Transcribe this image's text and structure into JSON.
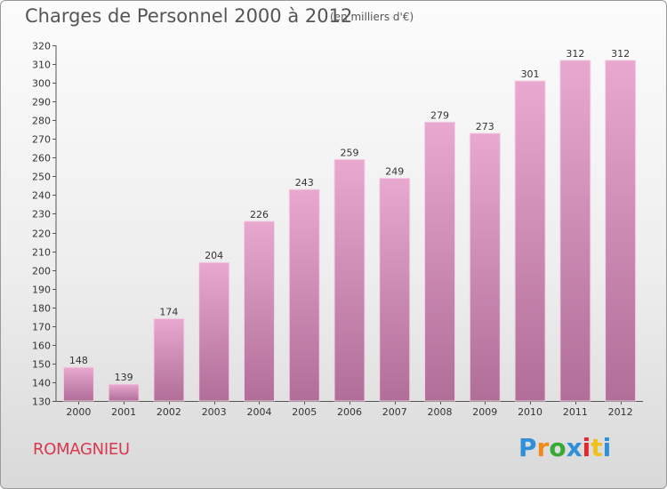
{
  "chart_data": {
    "type": "bar",
    "title": "Charges de Personnel 2000 à 2012",
    "subtitle": "(en milliers d'€)",
    "categories": [
      "2000",
      "2001",
      "2002",
      "2003",
      "2004",
      "2005",
      "2006",
      "2007",
      "2008",
      "2009",
      "2010",
      "2011",
      "2012"
    ],
    "values": [
      148,
      139,
      174,
      204,
      226,
      243,
      259,
      249,
      279,
      273,
      301,
      312,
      312
    ],
    "ylim": [
      130,
      320
    ],
    "ytick_step": 10,
    "xlabel": "",
    "ylabel": "",
    "grid": false
  },
  "footer": {
    "commune": "ROMAGNIEU"
  },
  "logo": {
    "text": "Proxiti",
    "letters": [
      "P",
      "r",
      "o",
      "x",
      "i",
      "t",
      "i"
    ],
    "colors": [
      "#2f8fd8",
      "#f08a1c",
      "#39a935",
      "#2f8fd8",
      "#e2282d",
      "#f2c01a",
      "#2f8fd8"
    ]
  },
  "colors": {
    "bar_top": "#e8a8cf",
    "bar_bottom": "#b06e98",
    "bar_edge": "#f3d2e6",
    "title": "#555555",
    "commune": "#d8394f"
  }
}
